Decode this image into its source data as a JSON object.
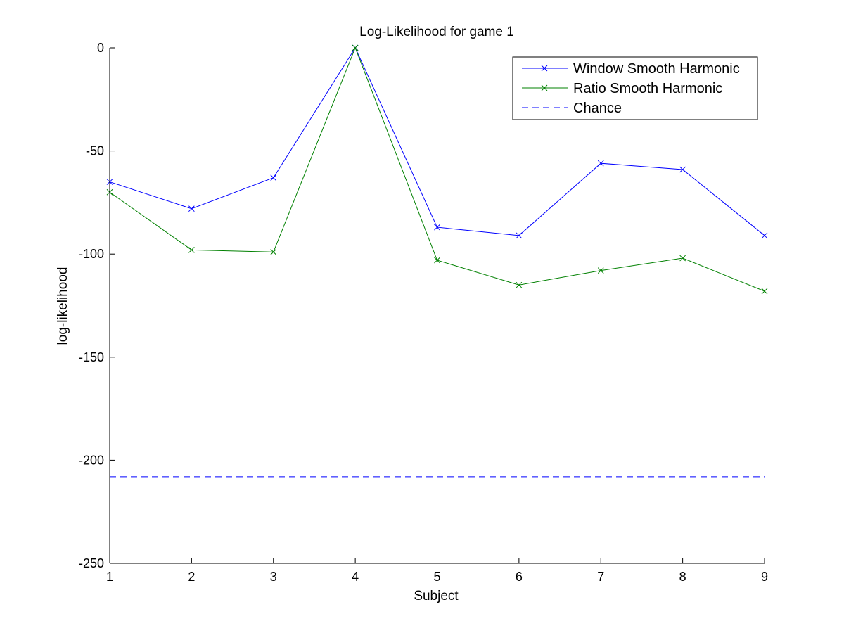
{
  "chart_data": {
    "type": "line",
    "title": "Log-Likelihood for game 1",
    "xlabel": "Subject",
    "ylabel": "log-likelihood",
    "x": [
      1,
      2,
      3,
      4,
      5,
      6,
      7,
      8,
      9
    ],
    "xlim": [
      1,
      9
    ],
    "ylim": [
      -250,
      0
    ],
    "xticks": [
      "1",
      "2",
      "3",
      "4",
      "5",
      "6",
      "7",
      "8",
      "9"
    ],
    "yticks": [
      "0",
      "-50",
      "-100",
      "-150",
      "-200",
      "-250"
    ],
    "ytick_values": [
      0,
      -50,
      -100,
      -150,
      -200,
      -250
    ],
    "grid": false,
    "legend_position": "top-right",
    "series": [
      {
        "name": "Window Smooth Harmonic",
        "color": "#0000ff",
        "style": "solid",
        "marker": "x",
        "values": [
          -65,
          -78,
          -63,
          0,
          -87,
          -91,
          -56,
          -59,
          -91
        ]
      },
      {
        "name": "Ratio Smooth Harmonic",
        "color": "#008000",
        "style": "solid",
        "marker": "x",
        "values": [
          -70,
          -98,
          -99,
          0,
          -103,
          -115,
          -108,
          -102,
          -118
        ]
      },
      {
        "name": "Chance",
        "color": "#0000ff",
        "style": "dashed",
        "marker": "none",
        "values": [
          -208,
          -208,
          -208,
          -208,
          -208,
          -208,
          -208,
          -208,
          -208
        ]
      }
    ]
  }
}
